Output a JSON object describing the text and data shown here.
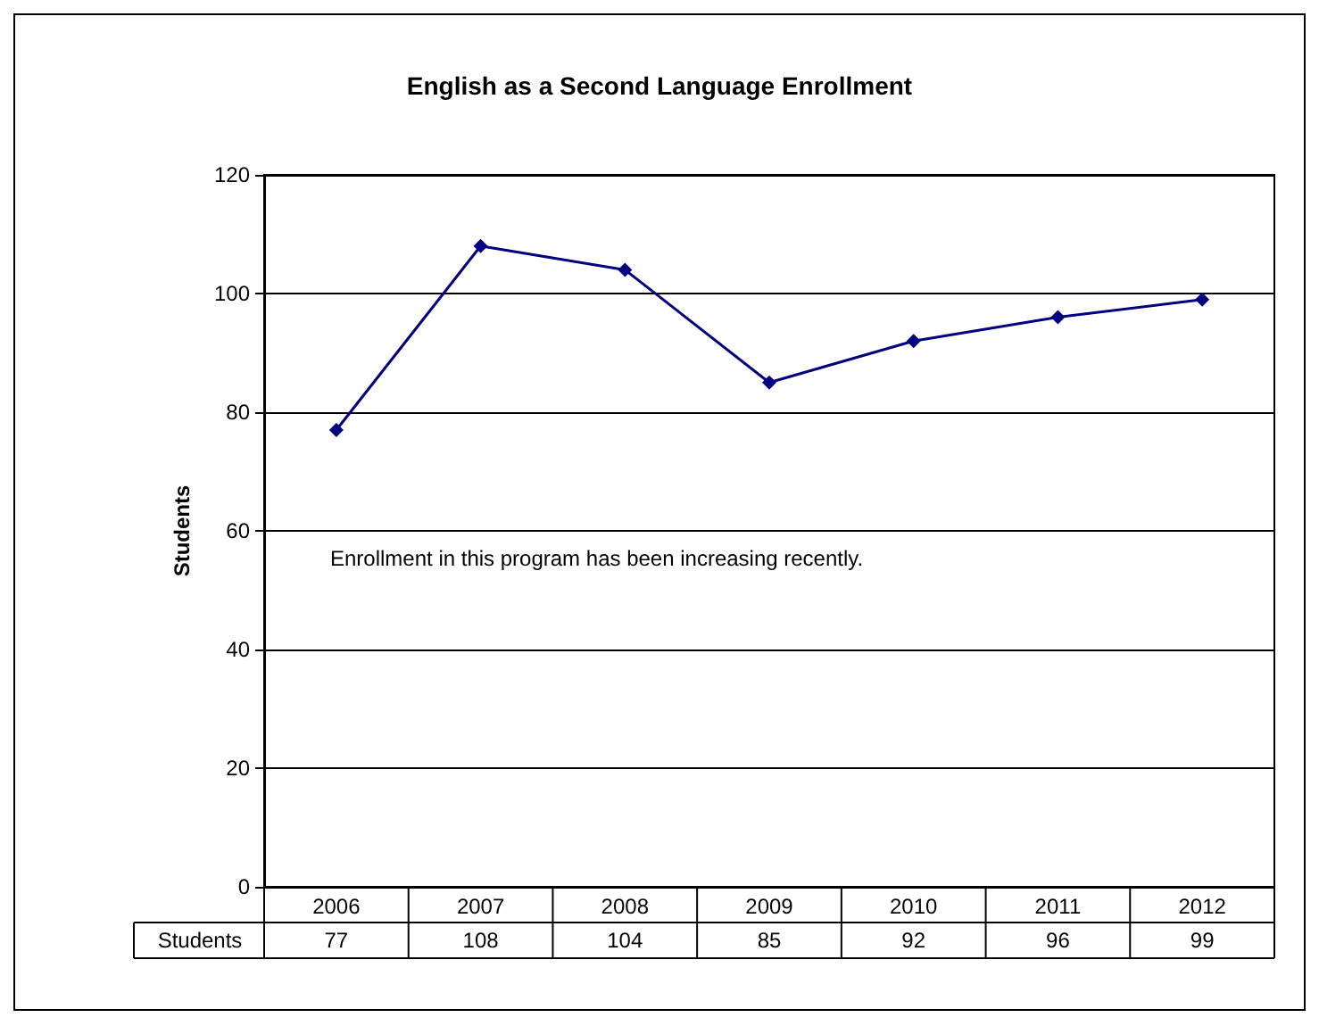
{
  "chart_data": {
    "type": "line",
    "title": "English as a Second Language Enrollment",
    "ylabel": "Students",
    "categories": [
      "2006",
      "2007",
      "2008",
      "2009",
      "2010",
      "2011",
      "2012"
    ],
    "series": [
      {
        "name": "Students",
        "color": "#000080",
        "values": [
          77,
          108,
          104,
          85,
          92,
          96,
          99
        ]
      }
    ],
    "ylim": [
      0,
      120
    ],
    "yticks": [
      0,
      20,
      40,
      60,
      80,
      100,
      120
    ],
    "grid": "y",
    "legend": false,
    "marker": "diamond",
    "line_style": "solid",
    "data_labels": true,
    "annotations": [
      "Enrollment in this program has been increasing recently."
    ]
  }
}
